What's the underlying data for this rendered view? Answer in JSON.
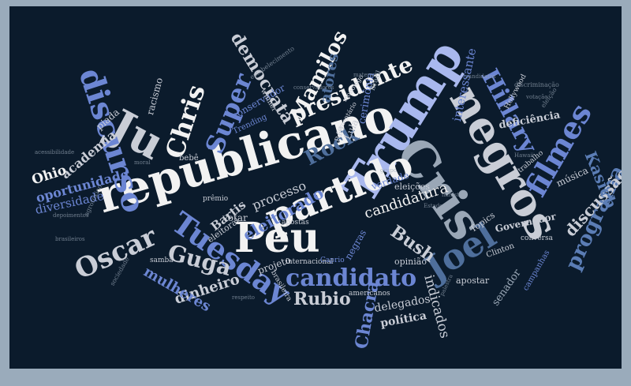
{
  "colors": {
    "background": "#0b1b2c",
    "frame": "#9aabbb",
    "white": "#f2f2f2",
    "silver": "#c9cdd6",
    "periwinkle": "#a9b8ee",
    "mid_blue": "#6c86d3",
    "steel": "#5b7db5",
    "slate": "#4f6f9c",
    "gray": "#9aa7b6"
  },
  "words": [
    {
      "text": "republicano"
    },
    {
      "text": "Trump"
    },
    {
      "text": "negros"
    },
    {
      "text": "Cris"
    },
    {
      "text": "partido"
    },
    {
      "text": "Peu"
    },
    {
      "text": "Ju"
    },
    {
      "text": "discurso"
    },
    {
      "text": "Joel"
    },
    {
      "text": "presidente"
    },
    {
      "text": "filmes"
    },
    {
      "text": "Tuesday"
    },
    {
      "text": "Oscar"
    },
    {
      "text": "candidato"
    },
    {
      "text": "Chris"
    },
    {
      "text": "Super"
    },
    {
      "text": "Hillary"
    },
    {
      "text": "democrata"
    },
    {
      "text": "Mamilos"
    },
    {
      "text": "programa"
    },
    {
      "text": "Rock"
    },
    {
      "text": "Guga"
    },
    {
      "text": "Rubio"
    },
    {
      "text": "Chacra"
    },
    {
      "text": "Bush"
    },
    {
      "text": "eleitorado"
    },
    {
      "text": "discussão"
    },
    {
      "text": "Kasich"
    },
    {
      "text": "candidatura"
    },
    {
      "text": "dinheiro"
    },
    {
      "text": "processo"
    },
    {
      "text": "mulheres"
    },
    {
      "text": "oportunidade"
    },
    {
      "text": "diversidade"
    },
    {
      "text": "academia"
    },
    {
      "text": "Ohio"
    },
    {
      "text": "piada"
    },
    {
      "text": "racismo"
    },
    {
      "text": "atores"
    },
    {
      "text": "interessante"
    },
    {
      "text": "indicados"
    },
    {
      "text": "delegados"
    },
    {
      "text": "política"
    },
    {
      "text": "deficiência"
    },
    {
      "text": "senador"
    },
    {
      "text": "Bartis"
    },
    {
      "text": "votar"
    },
    {
      "text": "conservador"
    },
    {
      "text": "cerimônia"
    },
    {
      "text": "verdade"
    },
    {
      "text": "música"
    },
    {
      "text": "Governador"
    },
    {
      "text": "eleições"
    },
    {
      "text": "opinião"
    },
    {
      "text": "apostar"
    },
    {
      "text": "Topics"
    },
    {
      "text": "negras"
    },
    {
      "text": "projeto"
    },
    {
      "text": "eleitoral"
    },
    {
      "text": "apostas"
    },
    {
      "text": "Lula"
    },
    {
      "text": "Paul"
    },
    {
      "text": "Brasil"
    },
    {
      "text": "Trending"
    },
    {
      "text": "winner"
    },
    {
      "text": "bebê"
    },
    {
      "text": "Clinton"
    },
    {
      "text": "campanhas"
    },
    {
      "text": "prêmio"
    },
    {
      "text": "americanos"
    },
    {
      "text": "brasileira"
    },
    {
      "text": "internacional"
    },
    {
      "text": "samba"
    },
    {
      "text": "Caprio"
    },
    {
      "text": "Hollywood"
    },
    {
      "text": "conversa"
    },
    {
      "text": "trabalho"
    },
    {
      "text": "comentário"
    },
    {
      "text": "monólogo"
    },
    {
      "text": "estabelecimento"
    },
    {
      "text": "agrotóxico"
    },
    {
      "text": "acessibilidade"
    },
    {
      "text": "sociedade"
    },
    {
      "text": "respeito"
    },
    {
      "text": "depoimentos"
    },
    {
      "text": "brasileiros"
    },
    {
      "text": "discriminação"
    },
    {
      "text": "Hawaii"
    },
    {
      "text": "eleição"
    },
    {
      "text": "votação"
    },
    {
      "text": "materno"
    },
    {
      "text": "candidatos"
    },
    {
      "text": "Estados"
    },
    {
      "text": "ministro"
    },
    {
      "text": "palestra"
    },
    {
      "text": "conservadores"
    },
    {
      "text": "grupo"
    },
    {
      "text": "moral"
    }
  ]
}
